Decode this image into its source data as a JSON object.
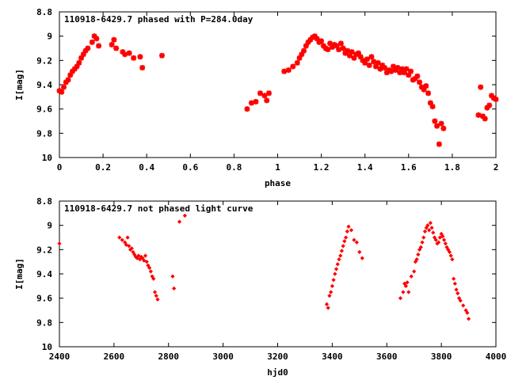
{
  "colors": {
    "points": "#ff0000",
    "axes": "#000000",
    "background": "#ffffff"
  },
  "chart_data": [
    {
      "type": "scatter",
      "title": "110918-6429.7 phased with P=284.0day",
      "xlabel": "phase",
      "ylabel": "I[mag]",
      "xlim": [
        0,
        2
      ],
      "ylim": [
        8.8,
        10
      ],
      "y_inverted": true,
      "grid": false,
      "x_ticks": [
        "0",
        "0.2",
        "0.4",
        "0.6",
        "0.8",
        "1",
        "1.2",
        "1.4",
        "1.6",
        "1.8",
        "2"
      ],
      "y_ticks": [
        "8.8",
        "9",
        "9.2",
        "9.4",
        "9.6",
        "9.8",
        "10"
      ],
      "series": [
        {
          "marker": "star",
          "x": [
            0.0,
            0.01,
            0.02,
            0.03,
            0.04,
            0.05,
            0.06,
            0.07,
            0.08,
            0.09,
            0.1,
            0.11,
            0.12,
            0.13,
            0.15,
            0.16,
            0.17,
            0.18,
            0.24,
            0.25,
            0.26,
            0.29,
            0.3,
            0.32,
            0.34,
            0.37,
            0.38,
            0.47,
            0.86,
            0.88,
            0.9,
            0.92,
            0.94,
            0.95,
            0.96,
            1.03,
            1.05,
            1.07,
            1.09,
            1.1,
            1.11,
            1.12,
            1.13,
            1.14,
            1.15,
            1.16,
            1.17,
            1.18,
            1.19,
            1.2,
            1.21,
            1.22,
            1.23,
            1.24,
            1.25,
            1.26,
            1.27,
            1.28,
            1.29,
            1.3,
            1.31,
            1.32,
            1.33,
            1.34,
            1.35,
            1.36,
            1.37,
            1.38,
            1.39,
            1.4,
            1.41,
            1.42,
            1.43,
            1.44,
            1.45,
            1.46,
            1.47,
            1.48,
            1.49,
            1.5,
            1.51,
            1.52,
            1.53,
            1.54,
            1.55,
            1.56,
            1.57,
            1.58,
            1.59,
            1.6,
            1.61,
            1.62,
            1.63,
            1.64,
            1.65,
            1.66,
            1.67,
            1.68,
            1.69,
            1.7,
            1.71,
            1.72,
            1.73,
            1.74,
            1.75,
            1.76,
            1.92,
            1.93,
            1.94,
            1.95,
            1.96,
            1.97,
            1.98,
            1.99,
            2.0
          ],
          "y": [
            9.45,
            9.46,
            9.42,
            9.38,
            9.36,
            9.32,
            9.29,
            9.27,
            9.25,
            9.22,
            9.18,
            9.15,
            9.12,
            9.1,
            9.05,
            9.0,
            9.02,
            9.08,
            9.07,
            9.03,
            9.1,
            9.13,
            9.15,
            9.14,
            9.18,
            9.17,
            9.26,
            9.16,
            9.6,
            9.55,
            9.54,
            9.47,
            9.49,
            9.53,
            9.47,
            9.29,
            9.28,
            9.25,
            9.22,
            9.18,
            9.15,
            9.12,
            9.08,
            9.05,
            9.03,
            9.01,
            9.0,
            9.02,
            9.05,
            9.04,
            9.08,
            9.1,
            9.11,
            9.06,
            9.09,
            9.07,
            9.08,
            9.11,
            9.06,
            9.1,
            9.14,
            9.12,
            9.16,
            9.13,
            9.18,
            9.15,
            9.14,
            9.17,
            9.2,
            9.22,
            9.19,
            9.24,
            9.17,
            9.21,
            9.25,
            9.22,
            9.27,
            9.24,
            9.26,
            9.3,
            9.28,
            9.29,
            9.25,
            9.28,
            9.26,
            9.3,
            9.27,
            9.3,
            9.27,
            9.32,
            9.29,
            9.36,
            9.35,
            9.33,
            9.38,
            9.42,
            9.44,
            9.41,
            9.47,
            9.55,
            9.58,
            9.7,
            9.74,
            9.89,
            9.72,
            9.76,
            9.65,
            9.42,
            9.66,
            9.68,
            9.59,
            9.57,
            9.49,
            9.51,
            9.52
          ]
        }
      ]
    },
    {
      "type": "scatter",
      "title": "110918-6429.7 not phased light curve",
      "xlabel": "hjd0",
      "ylabel": "I[mag]",
      "xlim": [
        2400,
        4000
      ],
      "ylim": [
        8.8,
        10
      ],
      "y_inverted": true,
      "grid": false,
      "x_ticks": [
        "2400",
        "2600",
        "2800",
        "3000",
        "3200",
        "3400",
        "3600",
        "3800",
        "4000"
      ],
      "y_ticks": [
        "8.8",
        "9",
        "9.2",
        "9.4",
        "9.6",
        "9.8",
        "10"
      ],
      "series": [
        {
          "marker": "diamond",
          "x": [
            2400,
            2620,
            2630,
            2640,
            2645,
            2650,
            2655,
            2660,
            2665,
            2670,
            2675,
            2680,
            2685,
            2690,
            2695,
            2700,
            2705,
            2710,
            2715,
            2720,
            2725,
            2730,
            2735,
            2740,
            2745,
            2750,
            2755,
            2760,
            2815,
            2820,
            2840,
            2860,
            3380,
            3385,
            3390,
            3395,
            3400,
            3405,
            3410,
            3415,
            3420,
            3425,
            3430,
            3435,
            3440,
            3445,
            3450,
            3455,
            3460,
            3470,
            3480,
            3490,
            3500,
            3510,
            3650,
            3660,
            3665,
            3670,
            3675,
            3680,
            3690,
            3700,
            3705,
            3710,
            3715,
            3720,
            3725,
            3730,
            3735,
            3740,
            3745,
            3750,
            3755,
            3760,
            3765,
            3770,
            3775,
            3780,
            3785,
            3790,
            3795,
            3800,
            3805,
            3810,
            3815,
            3820,
            3825,
            3830,
            3835,
            3840,
            3845,
            3850,
            3855,
            3860,
            3865,
            3870,
            3880,
            3890,
            3895,
            3900
          ],
          "y": [
            9.15,
            9.1,
            9.12,
            9.14,
            9.16,
            9.1,
            9.17,
            9.2,
            9.19,
            9.22,
            9.24,
            9.26,
            9.27,
            9.25,
            9.28,
            9.26,
            9.27,
            9.29,
            9.25,
            9.3,
            9.33,
            9.35,
            9.38,
            9.42,
            9.44,
            9.55,
            9.58,
            9.61,
            9.42,
            9.52,
            8.97,
            8.92,
            9.65,
            9.68,
            9.58,
            9.55,
            9.5,
            9.45,
            9.4,
            9.36,
            9.32,
            9.28,
            9.25,
            9.21,
            9.17,
            9.13,
            9.1,
            9.05,
            9.01,
            9.04,
            9.12,
            9.14,
            9.22,
            9.27,
            9.6,
            9.55,
            9.48,
            9.5,
            9.47,
            9.55,
            9.42,
            9.38,
            9.3,
            9.28,
            9.24,
            9.2,
            9.18,
            9.14,
            9.1,
            9.05,
            9.02,
            9.0,
            9.04,
            8.98,
            9.02,
            9.06,
            9.1,
            9.12,
            9.15,
            9.14,
            9.1,
            9.07,
            9.09,
            9.12,
            9.15,
            9.18,
            9.2,
            9.22,
            9.25,
            9.28,
            9.44,
            9.48,
            9.53,
            9.56,
            9.6,
            9.62,
            9.66,
            9.7,
            9.72,
            9.77
          ]
        }
      ]
    }
  ]
}
